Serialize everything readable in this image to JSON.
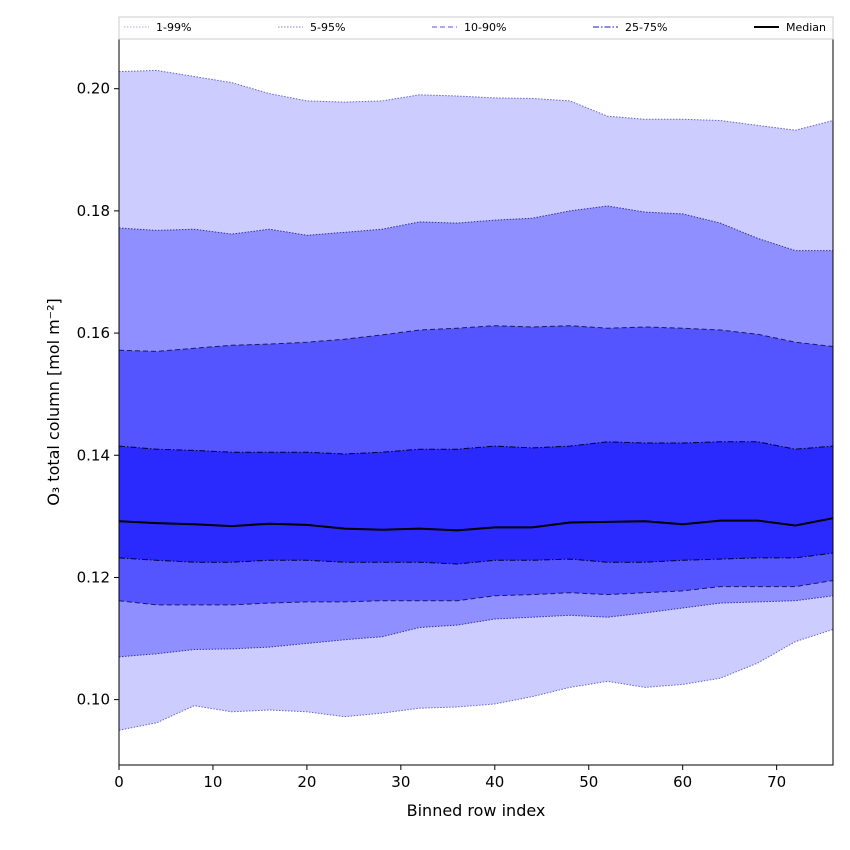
{
  "chart_data": {
    "type": "area",
    "title": "",
    "xlabel": "Binned row index",
    "ylabel": "O₃ total column [mol m⁻²]",
    "xlim": [
      0,
      76
    ],
    "ylim": [
      0.0893,
      0.2083
    ],
    "xticks": [
      0,
      10,
      20,
      30,
      40,
      50,
      60,
      70
    ],
    "yticks": [
      0.1,
      0.12,
      0.14,
      0.16,
      0.18,
      0.2
    ],
    "ytick_labels": [
      "0.10",
      "0.12",
      "0.14",
      "0.16",
      "0.18",
      "0.20"
    ],
    "legend_position": "top",
    "x": [
      0,
      4,
      8,
      12,
      16,
      20,
      24,
      28,
      32,
      36,
      40,
      44,
      48,
      52,
      56,
      60,
      64,
      68,
      72,
      76
    ],
    "median": [
      0.1292,
      0.1289,
      0.1287,
      0.1284,
      0.1288,
      0.1286,
      0.128,
      0.1278,
      0.128,
      0.1277,
      0.1282,
      0.1282,
      0.129,
      0.1291,
      0.1292,
      0.1287,
      0.1293,
      0.1293,
      0.1285,
      0.1297
    ],
    "bands": [
      {
        "name": "1-99%",
        "color": "#ccccff",
        "line_color": "#6666cc",
        "line_style": "dotted",
        "lower": [
          0.095,
          0.0962,
          0.099,
          0.098,
          0.0983,
          0.098,
          0.0972,
          0.0978,
          0.0986,
          0.0988,
          0.0993,
          0.1005,
          0.102,
          0.103,
          0.102,
          0.1025,
          0.1035,
          0.106,
          0.1095,
          0.1115
        ],
        "upper": [
          0.2028,
          0.203,
          0.202,
          0.201,
          0.1992,
          0.198,
          0.1978,
          0.198,
          0.199,
          0.1988,
          0.1985,
          0.1984,
          0.198,
          0.1955,
          0.195,
          0.195,
          0.1948,
          0.194,
          0.1932,
          0.1948
        ]
      },
      {
        "name": "5-95%",
        "color": "#8f8fff",
        "line_color": "#333399",
        "line_style": "dotted",
        "lower": [
          0.107,
          0.1075,
          0.1082,
          0.1083,
          0.1086,
          0.1092,
          0.1098,
          0.1103,
          0.1118,
          0.1122,
          0.1132,
          0.1135,
          0.1138,
          0.1135,
          0.1142,
          0.115,
          0.1158,
          0.116,
          0.1162,
          0.117
        ],
        "upper": [
          0.1772,
          0.1768,
          0.177,
          0.1762,
          0.177,
          0.176,
          0.1765,
          0.177,
          0.1782,
          0.178,
          0.1785,
          0.1788,
          0.18,
          0.1808,
          0.1798,
          0.1795,
          0.178,
          0.1755,
          0.1735,
          0.1735
        ]
      },
      {
        "name": "10-90%",
        "color": "#5555ff",
        "line_color": "#1a1a66",
        "line_style": "dashed",
        "lower": [
          0.1162,
          0.1155,
          0.1155,
          0.1155,
          0.1158,
          0.116,
          0.116,
          0.1162,
          0.1162,
          0.1162,
          0.117,
          0.1172,
          0.1175,
          0.1172,
          0.1175,
          0.1178,
          0.1185,
          0.1185,
          0.1185,
          0.1195
        ],
        "upper": [
          0.1572,
          0.157,
          0.1575,
          0.158,
          0.1582,
          0.1585,
          0.159,
          0.1597,
          0.1605,
          0.1608,
          0.1612,
          0.161,
          0.1612,
          0.1608,
          0.161,
          0.1608,
          0.1605,
          0.1598,
          0.1585,
          0.1578
        ]
      },
      {
        "name": "25-75%",
        "color": "#2a2aff",
        "line_color": "#000033",
        "line_style": "dashdot",
        "lower": [
          0.1232,
          0.1228,
          0.1225,
          0.1225,
          0.1228,
          0.1228,
          0.1225,
          0.1225,
          0.1225,
          0.1222,
          0.1228,
          0.1228,
          0.123,
          0.1225,
          0.1225,
          0.1228,
          0.123,
          0.1232,
          0.1232,
          0.124
        ],
        "upper": [
          0.1415,
          0.141,
          0.1408,
          0.1405,
          0.1405,
          0.1405,
          0.1402,
          0.1405,
          0.141,
          0.141,
          0.1415,
          0.1412,
          0.1415,
          0.1422,
          0.142,
          0.142,
          0.1422,
          0.1422,
          0.141,
          0.1415
        ]
      }
    ],
    "legend": [
      {
        "label": "1-99%",
        "color": "#ccccff",
        "style": "dotted"
      },
      {
        "label": "5-95%",
        "color": "#8f8fff",
        "style": "dotted"
      },
      {
        "label": "10-90%",
        "color": "#5555ff",
        "style": "dashed"
      },
      {
        "label": "25-75%",
        "color": "#2a2aff",
        "style": "dashdot"
      },
      {
        "label": "Median",
        "color": "#000000",
        "style": "solid"
      }
    ]
  }
}
